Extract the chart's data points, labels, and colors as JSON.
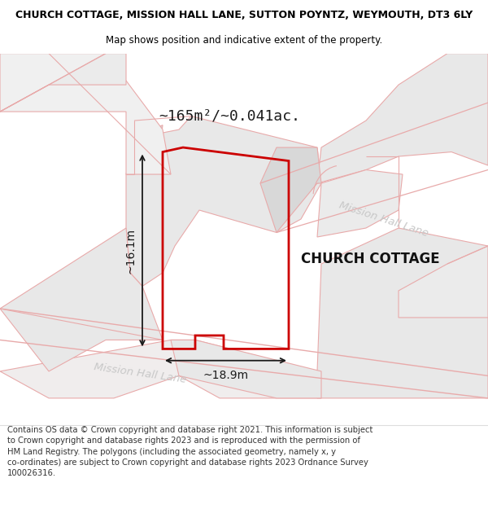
{
  "title_line1": "CHURCH COTTAGE, MISSION HALL LANE, SUTTON POYNTZ, WEYMOUTH, DT3 6LY",
  "title_line2": "Map shows position and indicative extent of the property.",
  "property_label": "CHURCH COTTAGE",
  "area_label": "~165m²/~0.041ac.",
  "dim_width": "~18.9m",
  "dim_height": "~16.1m",
  "road_label_lower": "Mission Hall Lane",
  "road_label_upper": "Mission Hall Lane",
  "footer_text": "Contains OS data © Crown copyright and database right 2021. This information is subject\nto Crown copyright and database rights 2023 and is reproduced with the permission of\nHM Land Registry. The polygons (including the associated geometry, namely x, y\nco-ordinates) are subject to Crown copyright and database rights 2023 Ordnance Survey\n100026316.",
  "map_bg": "#f7f3f3",
  "parcel_edge": "#e8aaaa",
  "parcel_fill_a": "#e8e8e8",
  "parcel_fill_b": "#ebebeb",
  "parcel_fill_c": "#d8d8d8",
  "red_color": "#cc0000",
  "dim_color": "#1a1a1a",
  "road_color": "#c8c8c8",
  "title_fontsize": 9.0,
  "subtitle_fontsize": 8.5,
  "area_fontsize": 13,
  "property_fontsize": 12,
  "dim_fontsize": 10,
  "road_fontsize": 9.5,
  "footer_fontsize": 7.2
}
